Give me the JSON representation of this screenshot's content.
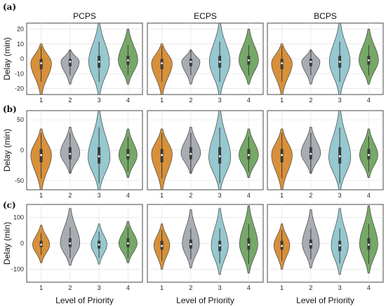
{
  "figure": {
    "columns": [
      "PCPS",
      "ECPS",
      "BCPS"
    ],
    "rows": [
      {
        "label": "(a)",
        "ylabel": "Delay (min)",
        "ylim": [
          -24,
          24
        ],
        "yticks": [
          -20,
          -10,
          0,
          10,
          20
        ],
        "xlabel": ""
      },
      {
        "label": "(b)",
        "ylabel": "Delay (min)",
        "ylim": [
          -65,
          65
        ],
        "yticks": [
          -50,
          0,
          50
        ],
        "xlabel": ""
      },
      {
        "label": "(c)",
        "ylabel": "Delay (min)",
        "ylim": [
          -150,
          150
        ],
        "yticks": [
          -100,
          0,
          100
        ],
        "xlabel": "Level of Priority"
      }
    ],
    "categories": [
      "1",
      "2",
      "3",
      "4"
    ],
    "colors": {
      "1": "#d8903a",
      "2": "#a8acb3",
      "3": "#96c8d0",
      "4": "#76a868"
    }
  },
  "chart_data": [
    {
      "type": "violin",
      "row": "(a)",
      "panel": "PCPS",
      "categories": [
        "1",
        "2",
        "3",
        "4"
      ],
      "ylim": [
        -24,
        24
      ],
      "ylabel": "Delay (min)",
      "grid": true,
      "series": [
        {
          "category": "1",
          "min": -24,
          "max": 10,
          "q1": -7,
          "median": -3,
          "q3": 0,
          "center": -3,
          "width": 0.85
        },
        {
          "category": "2",
          "min": -17,
          "max": 6,
          "q1": -5,
          "median": -2,
          "q3": 0,
          "center": -2,
          "width": 0.75
        },
        {
          "category": "3",
          "min": -24,
          "max": 24,
          "q1": -6,
          "median": -2,
          "q3": 2,
          "center": -2,
          "width": 0.85
        },
        {
          "category": "4",
          "min": -17,
          "max": 20,
          "q1": -4,
          "median": -1,
          "q3": 2,
          "center": -1,
          "width": 0.8
        }
      ]
    },
    {
      "type": "violin",
      "row": "(a)",
      "panel": "ECPS",
      "categories": [
        "1",
        "2",
        "3",
        "4"
      ],
      "ylim": [
        -24,
        24
      ],
      "ylabel": "Delay (min)",
      "grid": true,
      "series": [
        {
          "category": "1",
          "min": -24,
          "max": 10,
          "q1": -7,
          "median": -3,
          "q3": 0,
          "center": -3,
          "width": 0.85
        },
        {
          "category": "2",
          "min": -17,
          "max": 6,
          "q1": -5,
          "median": -2,
          "q3": 0,
          "center": -2,
          "width": 0.75
        },
        {
          "category": "3",
          "min": -24,
          "max": 24,
          "q1": -6,
          "median": -2,
          "q3": 2,
          "center": -2,
          "width": 0.85
        },
        {
          "category": "4",
          "min": -17,
          "max": 20,
          "q1": -4,
          "median": -1,
          "q3": 2,
          "center": -1,
          "width": 0.8
        }
      ]
    },
    {
      "type": "violin",
      "row": "(a)",
      "panel": "BCPS",
      "categories": [
        "1",
        "2",
        "3",
        "4"
      ],
      "ylim": [
        -24,
        24
      ],
      "ylabel": "Delay (min)",
      "grid": true,
      "series": [
        {
          "category": "1",
          "min": -24,
          "max": 10,
          "q1": -7,
          "median": -3,
          "q3": 0,
          "center": -3,
          "width": 0.85
        },
        {
          "category": "2",
          "min": -17,
          "max": 6,
          "q1": -5,
          "median": -2,
          "q3": 0,
          "center": -2,
          "width": 0.75
        },
        {
          "category": "3",
          "min": -24,
          "max": 24,
          "q1": -6,
          "median": -2,
          "q3": 2,
          "center": -2,
          "width": 0.85
        },
        {
          "category": "4",
          "min": -17,
          "max": 20,
          "q1": -4,
          "median": -1,
          "q3": 2,
          "center": -1,
          "width": 0.8
        }
      ]
    },
    {
      "type": "violin",
      "row": "(b)",
      "panel": "PCPS",
      "categories": [
        "1",
        "2",
        "3",
        "4"
      ],
      "ylim": [
        -65,
        65
      ],
      "ylabel": "Delay (min)",
      "grid": true,
      "series": [
        {
          "category": "1",
          "min": -65,
          "max": 35,
          "q1": -20,
          "median": -8,
          "q3": 2,
          "center": -8,
          "width": 0.85
        },
        {
          "category": "2",
          "min": -38,
          "max": 38,
          "q1": -15,
          "median": -6,
          "q3": 5,
          "center": -5,
          "width": 0.8
        },
        {
          "category": "3",
          "min": -65,
          "max": 65,
          "q1": -22,
          "median": -10,
          "q3": 5,
          "center": -12,
          "width": 0.9
        },
        {
          "category": "4",
          "min": -45,
          "max": 35,
          "q1": -15,
          "median": -8,
          "q3": 2,
          "center": -8,
          "width": 0.75
        }
      ]
    },
    {
      "type": "violin",
      "row": "(b)",
      "panel": "ECPS",
      "categories": [
        "1",
        "2",
        "3",
        "4"
      ],
      "ylim": [
        -65,
        65
      ],
      "ylabel": "Delay (min)",
      "grid": true,
      "series": [
        {
          "category": "1",
          "min": -65,
          "max": 35,
          "q1": -20,
          "median": -8,
          "q3": 2,
          "center": -6,
          "width": 0.85
        },
        {
          "category": "2",
          "min": -38,
          "max": 38,
          "q1": -15,
          "median": -6,
          "q3": 5,
          "center": -5,
          "width": 0.8
        },
        {
          "category": "3",
          "min": -65,
          "max": 65,
          "q1": -22,
          "median": -10,
          "q3": 5,
          "center": -12,
          "width": 0.9
        },
        {
          "category": "4",
          "min": -45,
          "max": 35,
          "q1": -15,
          "median": -8,
          "q3": 2,
          "center": -8,
          "width": 0.8
        }
      ]
    },
    {
      "type": "violin",
      "row": "(b)",
      "panel": "BCPS",
      "categories": [
        "1",
        "2",
        "3",
        "4"
      ],
      "ylim": [
        -65,
        65
      ],
      "ylabel": "Delay (min)",
      "grid": true,
      "series": [
        {
          "category": "1",
          "min": -65,
          "max": 35,
          "q1": -20,
          "median": -8,
          "q3": 2,
          "center": -8,
          "width": 0.85
        },
        {
          "category": "2",
          "min": -38,
          "max": 38,
          "q1": -15,
          "median": -6,
          "q3": 5,
          "center": -5,
          "width": 0.8
        },
        {
          "category": "3",
          "min": -65,
          "max": 65,
          "q1": -22,
          "median": -10,
          "q3": 5,
          "center": -12,
          "width": 0.9
        },
        {
          "category": "4",
          "min": -45,
          "max": 35,
          "q1": -15,
          "median": -8,
          "q3": 2,
          "center": -8,
          "width": 0.75
        }
      ]
    },
    {
      "type": "violin",
      "row": "(c)",
      "panel": "PCPS",
      "categories": [
        "1",
        "2",
        "3",
        "4"
      ],
      "ylim": [
        -150,
        150
      ],
      "ylabel": "Delay (min)",
      "xlabel": "Level of Priority",
      "grid": true,
      "series": [
        {
          "category": "1",
          "min": -75,
          "max": 70,
          "q1": -15,
          "median": -5,
          "q3": 10,
          "center": -5,
          "width": 0.7
        },
        {
          "category": "2",
          "min": -85,
          "max": 135,
          "q1": -15,
          "median": 0,
          "q3": 20,
          "center": 0,
          "width": 0.8
        },
        {
          "category": "3",
          "min": -80,
          "max": 75,
          "q1": -20,
          "median": -5,
          "q3": 10,
          "center": -5,
          "width": 0.65
        },
        {
          "category": "4",
          "min": -75,
          "max": 85,
          "q1": -15,
          "median": 0,
          "q3": 20,
          "center": 0,
          "width": 0.75
        }
      ]
    },
    {
      "type": "violin",
      "row": "(c)",
      "panel": "ECPS",
      "categories": [
        "1",
        "2",
        "3",
        "4"
      ],
      "ylim": [
        -150,
        150
      ],
      "ylabel": "Delay (min)",
      "xlabel": "Level of Priority",
      "grid": true,
      "series": [
        {
          "category": "1",
          "min": -100,
          "max": 75,
          "q1": -25,
          "median": -10,
          "q3": 10,
          "center": -8,
          "width": 0.65
        },
        {
          "category": "2",
          "min": -95,
          "max": 130,
          "q1": -20,
          "median": -3,
          "q3": 15,
          "center": -2,
          "width": 0.7
        },
        {
          "category": "3",
          "min": -120,
          "max": 135,
          "q1": -30,
          "median": -8,
          "q3": 10,
          "center": -10,
          "width": 0.7
        },
        {
          "category": "4",
          "min": -115,
          "max": 145,
          "q1": -25,
          "median": -5,
          "q3": 20,
          "center": -3,
          "width": 0.75
        }
      ]
    },
    {
      "type": "violin",
      "row": "(c)",
      "panel": "BCPS",
      "categories": [
        "1",
        "2",
        "3",
        "4"
      ],
      "ylim": [
        -150,
        150
      ],
      "ylabel": "Delay (min)",
      "xlabel": "Level of Priority",
      "grid": true,
      "series": [
        {
          "category": "1",
          "min": -100,
          "max": 75,
          "q1": -25,
          "median": -10,
          "q3": 10,
          "center": -8,
          "width": 0.65
        },
        {
          "category": "2",
          "min": -95,
          "max": 130,
          "q1": -20,
          "median": -3,
          "q3": 15,
          "center": -2,
          "width": 0.7
        },
        {
          "category": "3",
          "min": -120,
          "max": 135,
          "q1": -30,
          "median": -8,
          "q3": 10,
          "center": -10,
          "width": 0.7
        },
        {
          "category": "4",
          "min": -115,
          "max": 145,
          "q1": -25,
          "median": -5,
          "q3": 20,
          "center": -3,
          "width": 0.75
        }
      ]
    }
  ]
}
